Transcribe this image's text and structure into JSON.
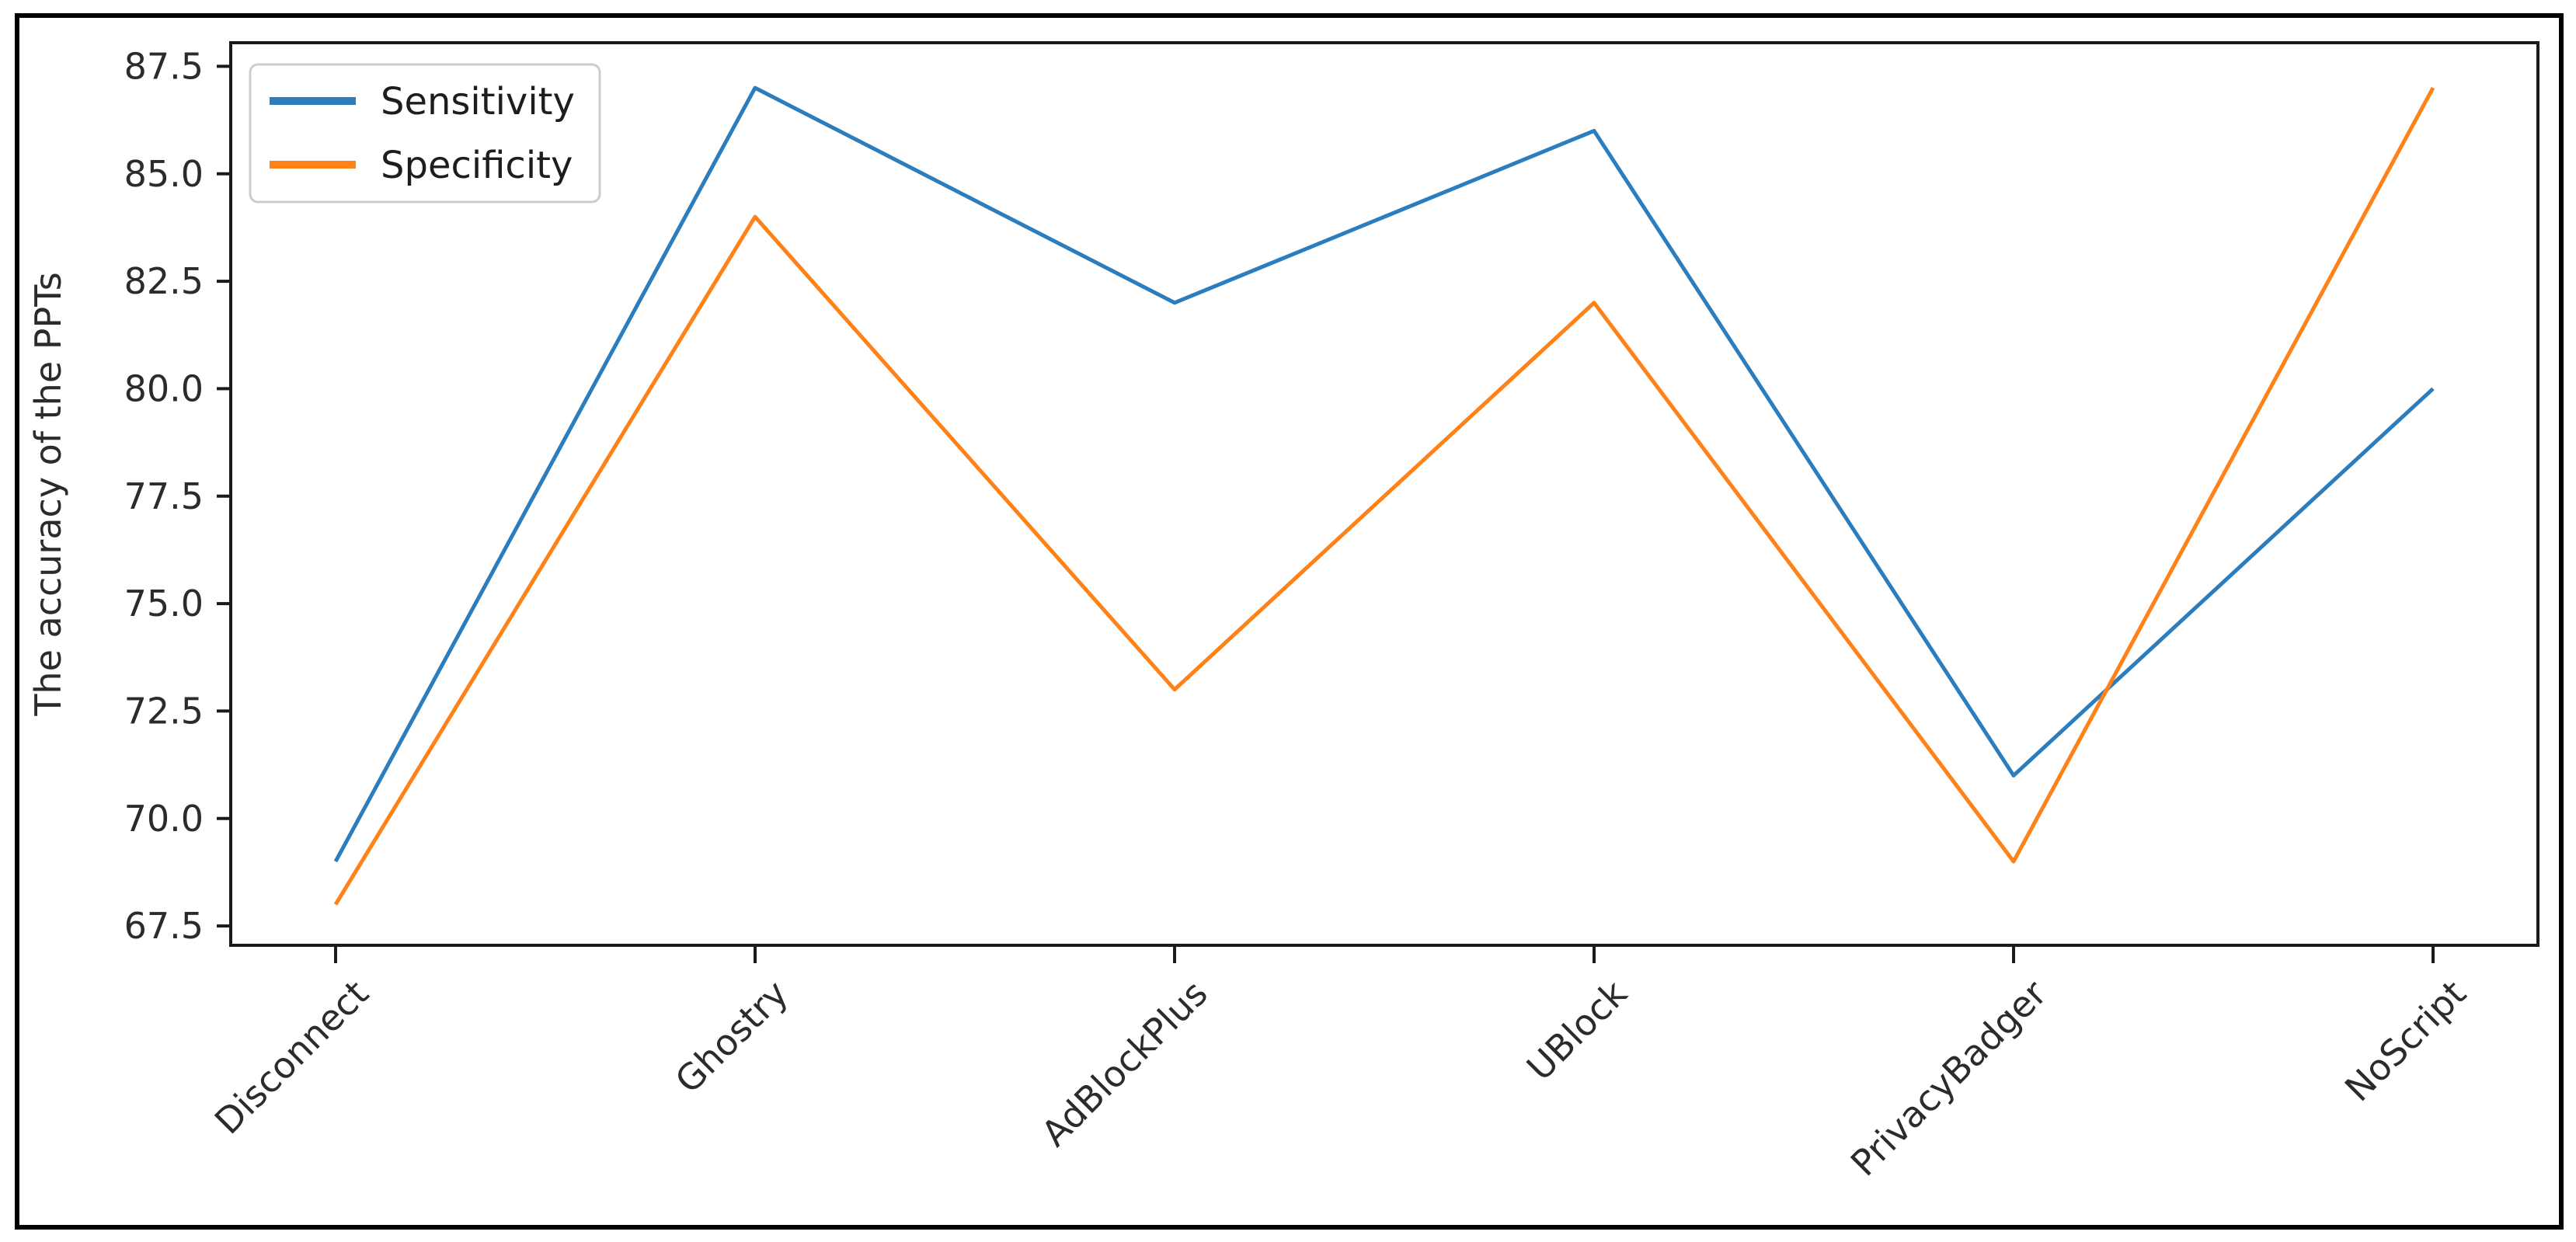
{
  "chart_data": {
    "type": "line",
    "title": "",
    "ylabel": "The accuracy of the PPTs",
    "xlabel": "",
    "categories": [
      "Disconnect",
      "Ghostry",
      "AdBlockPlus",
      "UBlock",
      "PrivacyBadger",
      "NoScript"
    ],
    "series": [
      {
        "name": "Sensitivity",
        "color": "#2b7dbd",
        "values": [
          69,
          87,
          82,
          86,
          71,
          80
        ]
      },
      {
        "name": "Specificity",
        "color": "#ff8218",
        "values": [
          68,
          84,
          73,
          82,
          69,
          87
        ]
      }
    ],
    "yticks": [
      67.5,
      70.0,
      72.5,
      75.0,
      77.5,
      80.0,
      82.5,
      85.0,
      87.5
    ],
    "ylim": [
      67.05,
      88.05
    ],
    "x_tick_rotation": 45,
    "grid": false,
    "legend": {
      "position": "upper-left",
      "entries": [
        "Sensitivity",
        "Specificity"
      ]
    },
    "colors": {
      "sensitivity_line": "#2b7dbd",
      "specificity_line": "#ff8218",
      "axes_spine": "#1a1a1a",
      "figure_border": "#000000",
      "background": "#ffffff",
      "legend_border": "#cccccc",
      "text": "#2b2b2b"
    }
  }
}
